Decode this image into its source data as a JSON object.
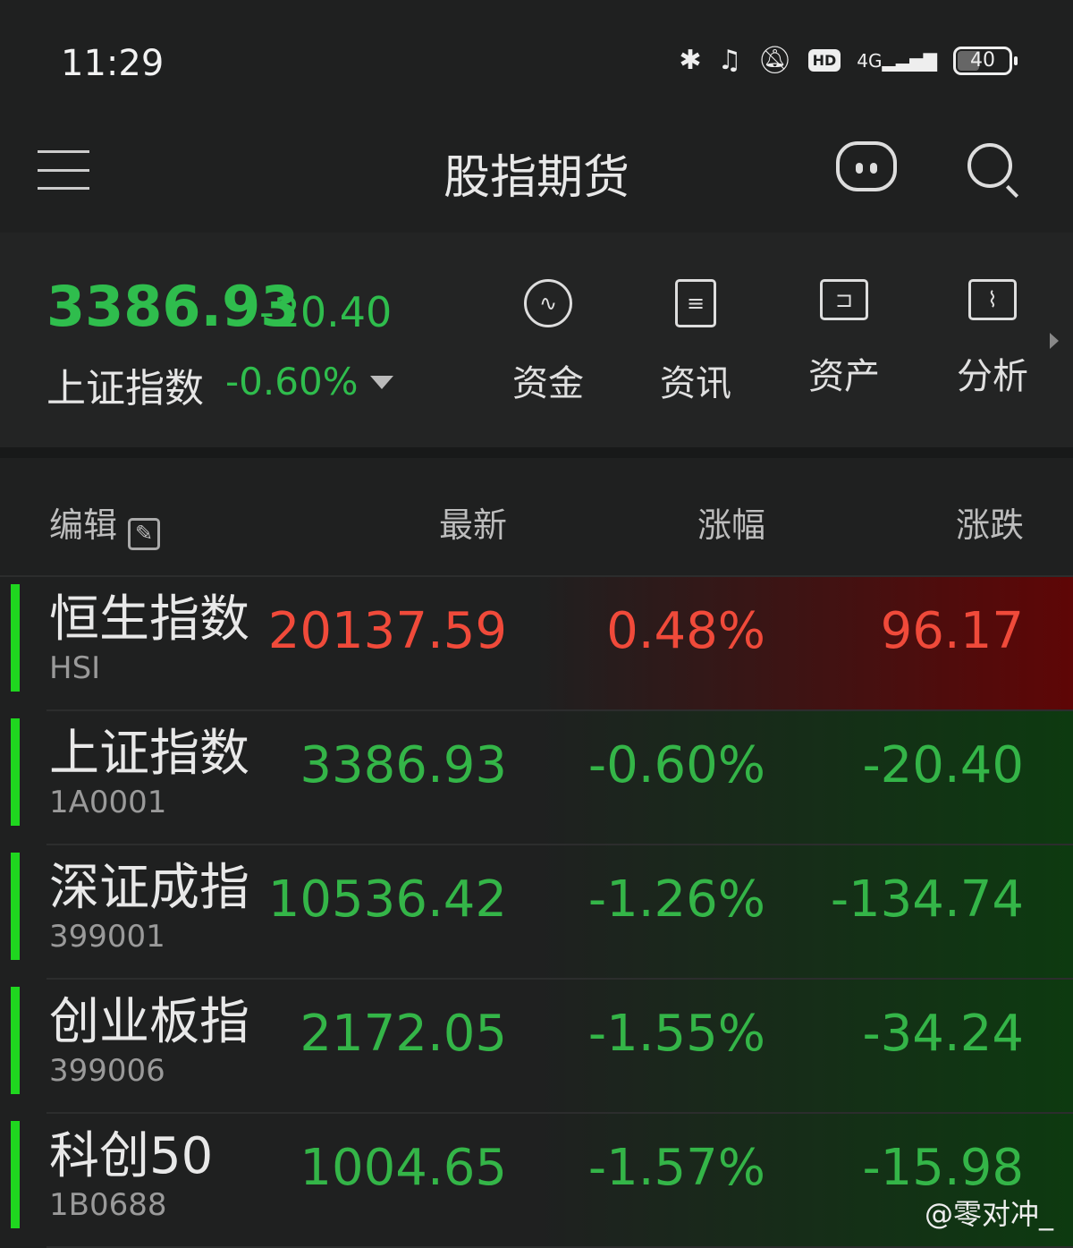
{
  "status_bar": {
    "time": "11:29",
    "network": "4G",
    "hd": "HD",
    "battery": "40",
    "icons": [
      "bluetooth-icon",
      "earbuds-icon",
      "mute-icon",
      "hd-icon",
      "signal-icon",
      "battery-icon"
    ]
  },
  "header": {
    "title": "股指期货",
    "icons": [
      "menu-icon",
      "robot-icon",
      "search-icon"
    ]
  },
  "summary": {
    "value": "3386.93",
    "change": "-20.40",
    "name": "上证指数",
    "percent": "-0.60%"
  },
  "quick_actions": [
    {
      "label": "资金",
      "icon": "pulse-icon"
    },
    {
      "label": "资讯",
      "icon": "document-icon"
    },
    {
      "label": "资产",
      "icon": "wallet-icon"
    },
    {
      "label": "分析",
      "icon": "folder-chart-icon"
    }
  ],
  "table": {
    "edit_label": "编辑",
    "columns": [
      "最新",
      "涨幅",
      "涨跌"
    ],
    "rows": [
      {
        "name": "恒生指数",
        "code": "HSI",
        "price": "20137.59",
        "pct": "0.48%",
        "chg": "96.17",
        "trend": "up"
      },
      {
        "name": "上证指数",
        "code": "1A0001",
        "price": "3386.93",
        "pct": "-0.60%",
        "chg": "-20.40",
        "trend": "down"
      },
      {
        "name": "深证成指",
        "code": "399001",
        "price": "10536.42",
        "pct": "-1.26%",
        "chg": "-134.74",
        "trend": "down"
      },
      {
        "name": "创业板指",
        "code": "399006",
        "price": "2172.05",
        "pct": "-1.55%",
        "chg": "-34.24",
        "trend": "down"
      },
      {
        "name": "科创50",
        "code": "1B0688",
        "price": "1004.65",
        "pct": "-1.57%",
        "chg": "-15.98",
        "trend": "down"
      }
    ]
  },
  "watermark": "@零对冲_",
  "colors": {
    "up": "#f04a3a",
    "down": "#34b548",
    "indicator": "#1fd61f"
  }
}
